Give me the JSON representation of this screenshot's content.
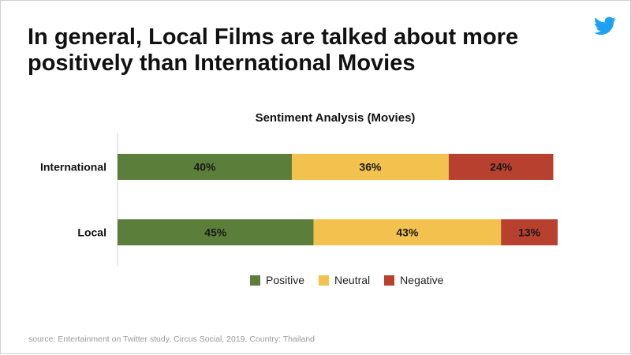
{
  "headline": "In general, Local Films are talked about more positively than International Movies",
  "logo_icon": "twitter-bird-icon",
  "source": "source: Entertainment on Twitter study, Circus Social, 2019. Country: Thailand",
  "chart_data": {
    "type": "bar",
    "orientation": "horizontal",
    "stacked": true,
    "title": "Sentiment Analysis (Movies)",
    "categories": [
      "International",
      "Local"
    ],
    "series": [
      {
        "name": "Positive",
        "values": [
          40,
          45
        ],
        "labels": [
          "40%",
          "45%"
        ],
        "color": "#5b7f3a"
      },
      {
        "name": "Neutral",
        "values": [
          36,
          43
        ],
        "labels": [
          "36%",
          "43%"
        ],
        "color": "#f2c14e"
      },
      {
        "name": "Negative",
        "values": [
          24,
          13
        ],
        "labels": [
          "24%",
          "13%"
        ],
        "color": "#b8402f"
      }
    ],
    "xlim": [
      0,
      101
    ],
    "legend_position": "bottom",
    "grid": false
  }
}
